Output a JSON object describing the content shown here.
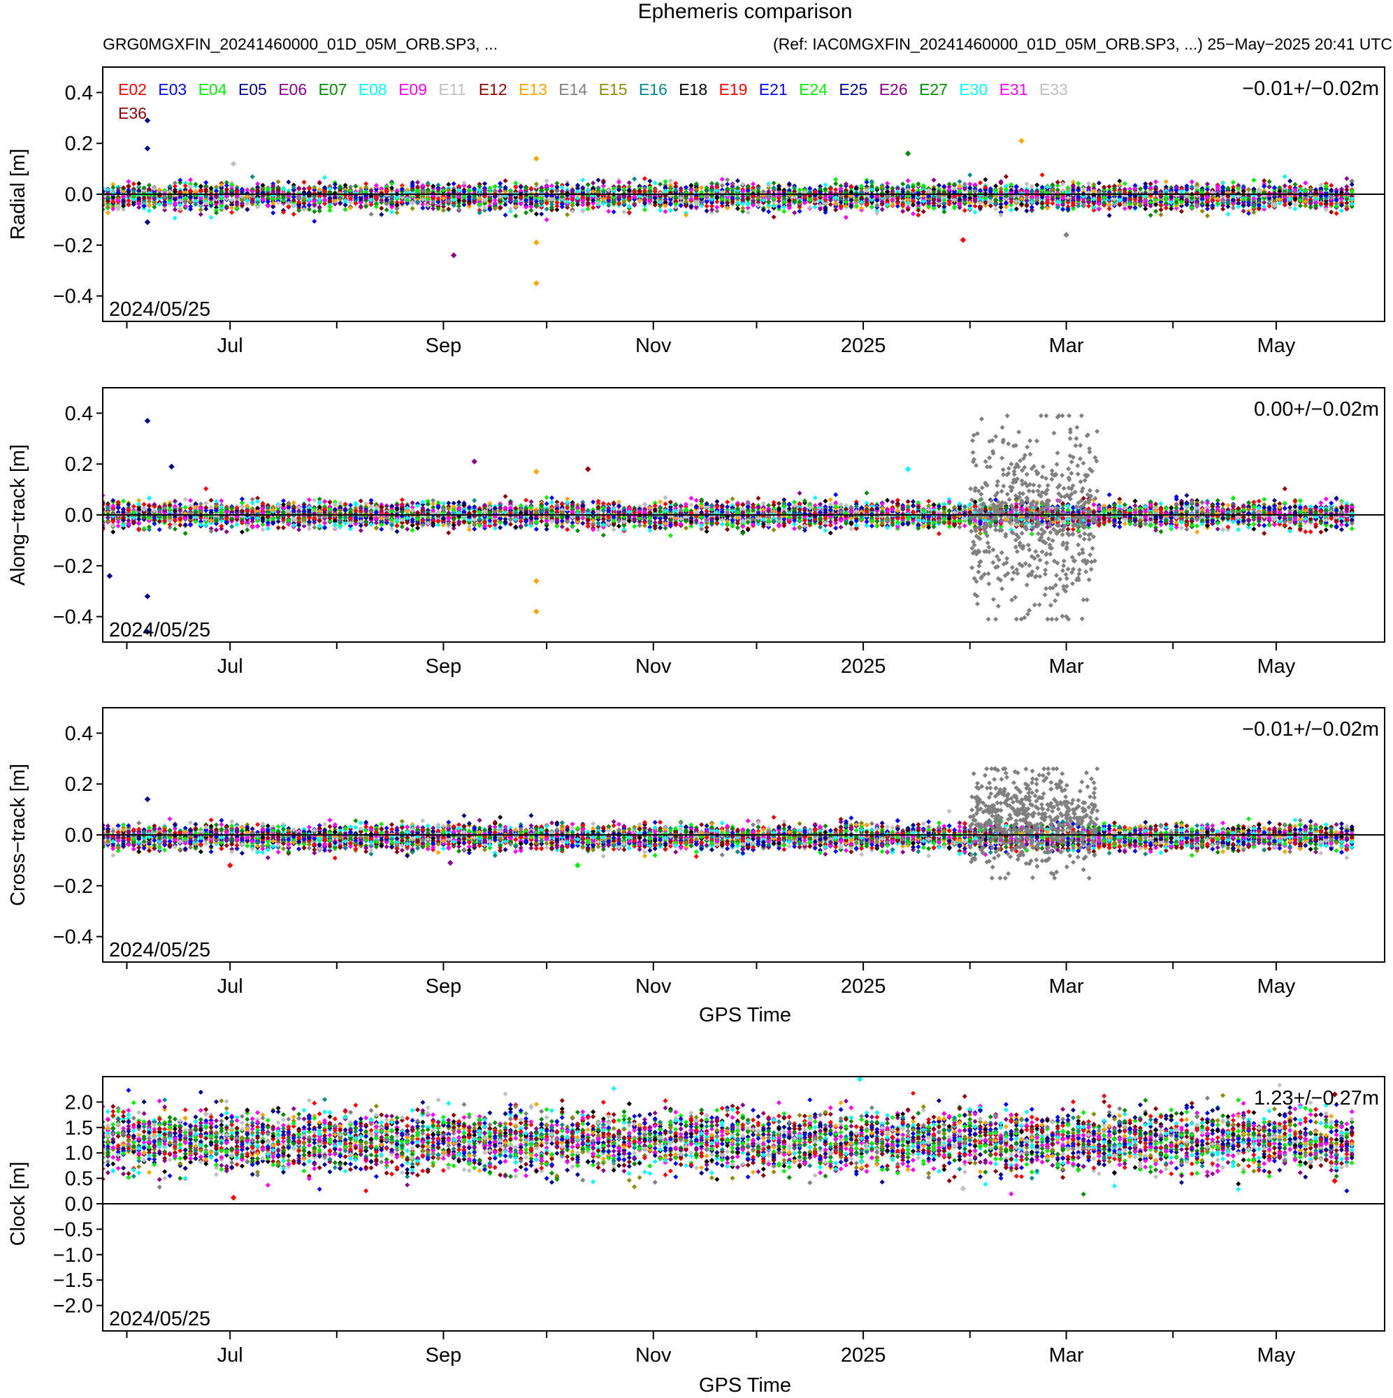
{
  "figure": {
    "title": "Ephemeris comparison",
    "subtitle_left": "GRG0MGXFIN_20241460000_01D_05M_ORB.SP3, ...",
    "subtitle_right": "(Ref: IAC0MGXFIN_20241460000_01D_05M_ORB.SP3, ...)  25−May−2025 20:41 UTC",
    "xlabel": "GPS Time"
  },
  "legend": [
    {
      "name": "E02",
      "color": "#ff0000"
    },
    {
      "name": "E03",
      "color": "#0000ff"
    },
    {
      "name": "E04",
      "color": "#00ee00"
    },
    {
      "name": "E05",
      "color": "#00008b"
    },
    {
      "name": "E06",
      "color": "#8b008b"
    },
    {
      "name": "E07",
      "color": "#008b00"
    },
    {
      "name": "E08",
      "color": "#00ffff"
    },
    {
      "name": "E09",
      "color": "#ff00ff"
    },
    {
      "name": "E11",
      "color": "#c0c0c0"
    },
    {
      "name": "E12",
      "color": "#8b0000"
    },
    {
      "name": "E13",
      "color": "#ffa500"
    },
    {
      "name": "E14",
      "color": "#808080"
    },
    {
      "name": "E15",
      "color": "#8b8b00"
    },
    {
      "name": "E16",
      "color": "#008b8b"
    },
    {
      "name": "E18",
      "color": "#000000"
    },
    {
      "name": "E19",
      "color": "#ff0000"
    },
    {
      "name": "E21",
      "color": "#0000ff"
    },
    {
      "name": "E24",
      "color": "#00ee00"
    },
    {
      "name": "E25",
      "color": "#00008b"
    },
    {
      "name": "E26",
      "color": "#8b008b"
    },
    {
      "name": "E27",
      "color": "#008b00"
    },
    {
      "name": "E30",
      "color": "#00ffff"
    },
    {
      "name": "E31",
      "color": "#ff00ff"
    },
    {
      "name": "E33",
      "color": "#c0c0c0"
    },
    {
      "name": "E36",
      "color": "#8b0000"
    }
  ],
  "chart_data": [
    {
      "type": "scatter",
      "ylabel": "Radial [m]",
      "ylim": [
        -0.5,
        0.5
      ],
      "yticks": [
        "0.4",
        "0.2",
        "0.0",
        "−0.2",
        "−0.4"
      ],
      "ytick_values": [
        0.4,
        0.2,
        0.0,
        -0.2,
        -0.4
      ],
      "xlim": [
        "2024-05-25",
        "2025-05-26"
      ],
      "xticks": [
        "Jul",
        "Sep",
        "Nov",
        "2025",
        "Mar",
        "May"
      ],
      "xtick_dates": [
        "2024-07-01",
        "2024-09-01",
        "2024-11-01",
        "2025-01-01",
        "2025-03-01",
        "2025-05-01"
      ],
      "minor_xtick_dates": [
        "2024-06-01",
        "2024-08-01",
        "2024-10-01",
        "2024-12-01",
        "2025-02-01",
        "2025-04-01"
      ],
      "date_label": "2024/05/25",
      "stat": "−0.01+/−0.02m",
      "mean": -0.01,
      "sd": 0.02,
      "outliers": [
        {
          "x": "2024-06-07",
          "y": 0.29,
          "series": "E05"
        },
        {
          "x": "2024-06-07",
          "y": 0.18,
          "series": "E05"
        },
        {
          "x": "2024-06-07",
          "y": -0.11,
          "series": "E05"
        },
        {
          "x": "2024-09-28",
          "y": -0.35,
          "series": "E13"
        },
        {
          "x": "2024-09-28",
          "y": 0.14,
          "series": "E13"
        },
        {
          "x": "2024-09-28",
          "y": -0.19,
          "series": "E13"
        },
        {
          "x": "2024-09-04",
          "y": -0.24,
          "series": "E06"
        },
        {
          "x": "2025-01-14",
          "y": 0.16,
          "series": "E07"
        },
        {
          "x": "2025-02-16",
          "y": 0.21,
          "series": "E13"
        },
        {
          "x": "2025-01-30",
          "y": -0.18,
          "series": "E02"
        },
        {
          "x": "2024-07-02",
          "y": 0.12,
          "series": "E11"
        },
        {
          "x": "2025-03-01",
          "y": -0.16,
          "series": "E14"
        }
      ]
    },
    {
      "type": "scatter",
      "ylabel": "Along−track [m]",
      "ylim": [
        -0.5,
        0.5
      ],
      "yticks": [
        "0.4",
        "0.2",
        "0.0",
        "−0.2",
        "−0.4"
      ],
      "ytick_values": [
        0.4,
        0.2,
        0.0,
        -0.2,
        -0.4
      ],
      "xlim": [
        "2024-05-25",
        "2025-05-26"
      ],
      "xticks": [
        "Jul",
        "Sep",
        "Nov",
        "2025",
        "Mar",
        "May"
      ],
      "xtick_dates": [
        "2024-07-01",
        "2024-09-01",
        "2024-11-01",
        "2025-01-01",
        "2025-03-01",
        "2025-05-01"
      ],
      "minor_xtick_dates": [
        "2024-06-01",
        "2024-08-01",
        "2024-10-01",
        "2024-12-01",
        "2025-02-01",
        "2025-04-01"
      ],
      "date_label": "2024/05/25",
      "stat": "0.00+/−0.02m",
      "mean": 0.0,
      "sd": 0.02,
      "outliers": [
        {
          "x": "2024-06-07",
          "y": 0.37,
          "series": "E05"
        },
        {
          "x": "2024-06-07",
          "y": -0.46,
          "series": "E05"
        },
        {
          "x": "2024-06-07",
          "y": -0.32,
          "series": "E05"
        },
        {
          "x": "2024-05-27",
          "y": -0.24,
          "series": "E05"
        },
        {
          "x": "2024-06-14",
          "y": 0.19,
          "series": "E05"
        },
        {
          "x": "2024-09-28",
          "y": 0.17,
          "series": "E13"
        },
        {
          "x": "2024-09-28",
          "y": -0.38,
          "series": "E13"
        },
        {
          "x": "2024-09-28",
          "y": -0.26,
          "series": "E13"
        },
        {
          "x": "2024-09-10",
          "y": 0.21,
          "series": "E06"
        },
        {
          "x": "2024-10-13",
          "y": 0.18,
          "series": "E12"
        },
        {
          "x": "2025-01-14",
          "y": 0.18,
          "series": "E08"
        }
      ],
      "cluster": {
        "series": "E14",
        "x_from": "2025-02-01",
        "x_to": "2025-03-10",
        "y_min": -0.41,
        "y_max": 0.39
      }
    },
    {
      "type": "scatter",
      "ylabel": "Cross−track [m]",
      "ylim": [
        -0.5,
        0.5
      ],
      "yticks": [
        "0.4",
        "0.2",
        "0.0",
        "−0.2",
        "−0.4"
      ],
      "ytick_values": [
        0.4,
        0.2,
        0.0,
        -0.2,
        -0.4
      ],
      "xlim": [
        "2024-05-25",
        "2025-05-26"
      ],
      "xticks": [
        "Jul",
        "Sep",
        "Nov",
        "2025",
        "Mar",
        "May"
      ],
      "xtick_dates": [
        "2024-07-01",
        "2024-09-01",
        "2024-11-01",
        "2025-01-01",
        "2025-03-01",
        "2025-05-01"
      ],
      "minor_xtick_dates": [
        "2024-06-01",
        "2024-08-01",
        "2024-10-01",
        "2024-12-01",
        "2025-02-01",
        "2025-04-01"
      ],
      "date_label": "2024/05/25",
      "stat": "−0.01+/−0.02m",
      "mean": -0.01,
      "sd": 0.02,
      "outliers": [
        {
          "x": "2024-06-07",
          "y": 0.14,
          "series": "E05"
        },
        {
          "x": "2024-07-01",
          "y": -0.12,
          "series": "E02"
        },
        {
          "x": "2024-10-10",
          "y": -0.12,
          "series": "E04"
        },
        {
          "x": "2024-09-03",
          "y": -0.11,
          "series": "E06"
        }
      ],
      "cluster": {
        "series": "E14",
        "x_from": "2025-02-01",
        "x_to": "2025-03-10",
        "y_min": -0.17,
        "y_max": 0.26
      }
    },
    {
      "type": "scatter",
      "ylabel": "Clock [m]",
      "ylim": [
        -2.5,
        2.5
      ],
      "yticks": [
        "2.0",
        "1.5",
        "1.0",
        "0.5",
        "0.0",
        "−0.5",
        "−1.0",
        "−1.5",
        "−2.0"
      ],
      "ytick_values": [
        2.0,
        1.5,
        1.0,
        0.5,
        0.0,
        -0.5,
        -1.0,
        -1.5,
        -2.0
      ],
      "xlim": [
        "2024-05-25",
        "2025-05-26"
      ],
      "xticks": [
        "Jul",
        "Sep",
        "Nov",
        "2025",
        "Mar",
        "May"
      ],
      "xtick_dates": [
        "2024-07-01",
        "2024-09-01",
        "2024-11-01",
        "2025-01-01",
        "2025-03-01",
        "2025-05-01"
      ],
      "minor_xtick_dates": [
        "2024-06-01",
        "2024-08-01",
        "2024-10-01",
        "2024-12-01",
        "2025-02-01",
        "2025-04-01"
      ],
      "date_label": "2024/05/25",
      "stat": "1.23+/−0.27m",
      "mean": 1.23,
      "sd": 0.27,
      "outliers": [
        {
          "x": "2024-12-31",
          "y": 2.45,
          "series": "E08"
        },
        {
          "x": "2024-07-02",
          "y": 0.12,
          "series": "E02"
        },
        {
          "x": "2025-05-18",
          "y": 2.15,
          "series": "E36"
        },
        {
          "x": "2025-05-18",
          "y": 0.45,
          "series": "E02"
        },
        {
          "x": "2025-01-30",
          "y": 0.3,
          "series": "E11"
        }
      ]
    }
  ]
}
